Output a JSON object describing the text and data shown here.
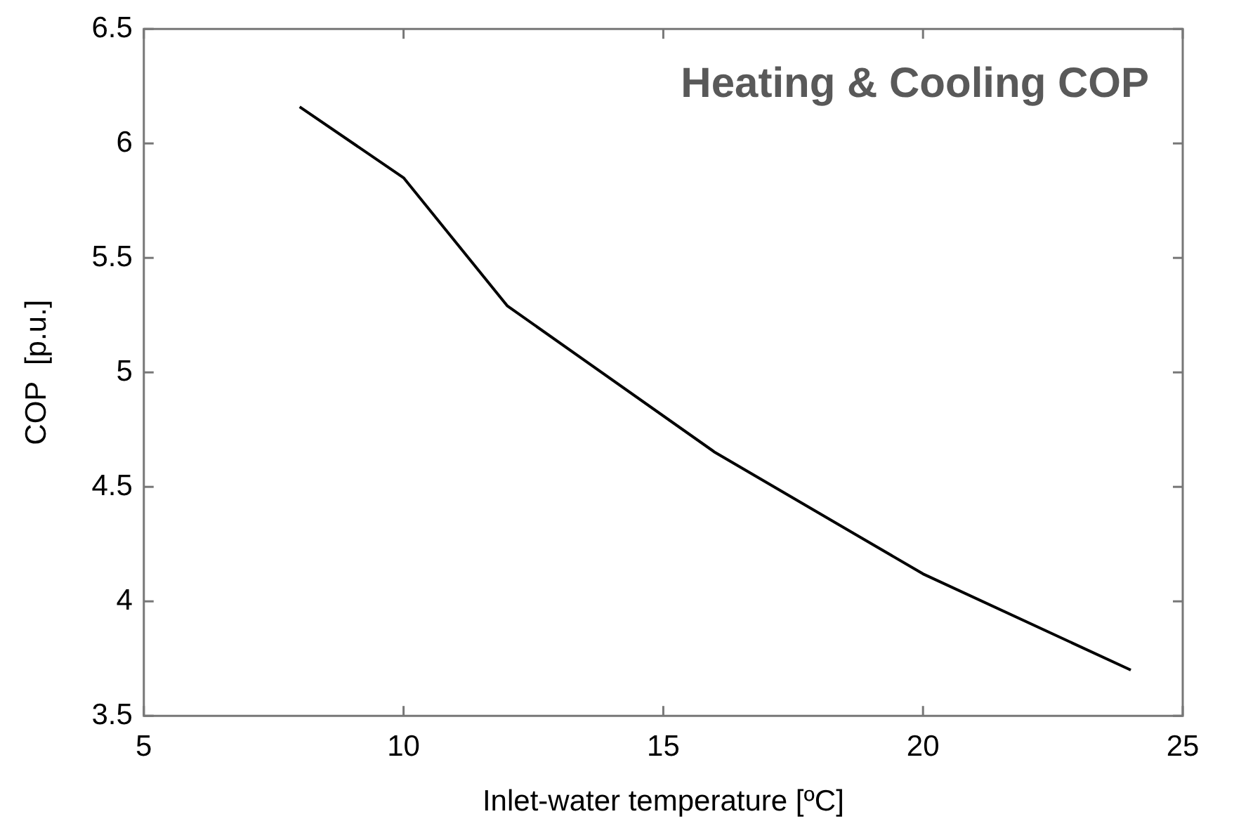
{
  "chart_data": {
    "type": "line",
    "title": "Heating & Cooling COP",
    "xlabel": "Inlet-water temperature [ºC]",
    "ylabel": "COP  [p.u.]",
    "x": [
      8,
      10,
      12,
      16,
      20,
      24
    ],
    "series": [
      {
        "color": "#000000",
        "values": [
          6.16,
          5.85,
          5.29,
          4.65,
          4.12,
          3.7
        ]
      }
    ],
    "xlim": [
      5,
      25
    ],
    "xticks": [
      5,
      10,
      15,
      20,
      25
    ],
    "ylim": [
      3.5,
      6.5
    ],
    "yticks": [
      3.5,
      4,
      4.5,
      5,
      5.5,
      6,
      6.5
    ],
    "grid": false,
    "legend": false,
    "marker": "none",
    "line_style": "solid"
  }
}
